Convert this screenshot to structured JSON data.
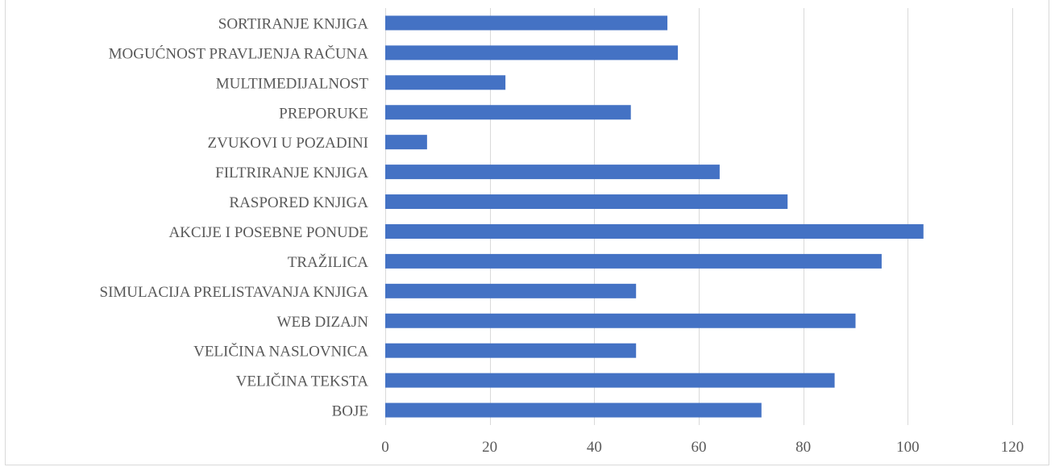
{
  "chart_data": {
    "type": "bar",
    "orientation": "horizontal",
    "title": "",
    "xlabel": "",
    "ylabel": "",
    "categories": [
      "SORTIRANJE KNJIGA",
      "MOGUĆNOST PRAVLJENJA RAČUNA",
      "MULTIMEDIJALNOST",
      "PREPORUKE",
      "ZVUKOVI U POZADINI",
      "FILTRIRANJE KNJIGA",
      "RASPORED KNJIGA",
      "AKCIJE I POSEBNE PONUDE",
      "TRAŽILICA",
      "SIMULACIJA PRELISTAVANJA KNJIGA",
      "WEB DIZAJN",
      "VELIČINA NASLOVNICA",
      "VELIČINA TEKSTA",
      "BOJE"
    ],
    "values": [
      54,
      56,
      23,
      47,
      8,
      64,
      77,
      103,
      95,
      48,
      90,
      48,
      86,
      72
    ],
    "xlim": [
      0,
      120
    ],
    "xticks": [
      0,
      20,
      40,
      60,
      80,
      100,
      120
    ],
    "grid": true,
    "legend": "none",
    "bar_color": "#4472c4"
  }
}
